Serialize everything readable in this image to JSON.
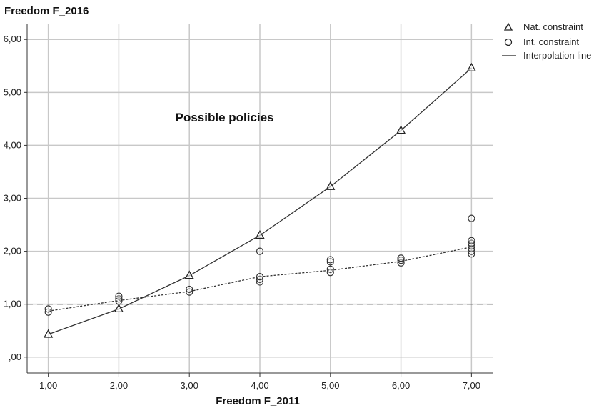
{
  "chart_data": {
    "type": "scatter",
    "ylabel": "Freedom F_2016",
    "xlabel": "Freedom F_2011",
    "xlim": [
      0.7,
      7.3
    ],
    "ylim": [
      -0.3,
      6.3
    ],
    "x_ticks": [
      1,
      2,
      3,
      4,
      5,
      6,
      7
    ],
    "y_ticks": [
      0,
      1,
      2,
      3,
      4,
      5,
      6
    ],
    "x_tick_labels": [
      "1,00",
      "2,00",
      "3,00",
      "4,00",
      "5,00",
      "6,00",
      "7,00"
    ],
    "y_tick_labels": [
      ",00",
      "1,00",
      "2,00",
      "3,00",
      "4,00",
      "5,00",
      "6,00"
    ],
    "grid": true,
    "legend_position": "top-right",
    "reference_line": {
      "y": 1.0,
      "style": "dashed"
    },
    "annotation": {
      "text": "Possible policies",
      "x": 3.5,
      "y": 4.45
    },
    "legend": [
      {
        "label": "Nat. constraint",
        "symbol": "triangle"
      },
      {
        "label": "Int. constraint",
        "symbol": "circle"
      },
      {
        "label": "Interpolation line",
        "symbol": "line"
      }
    ],
    "series": [
      {
        "name": "Nat. constraint",
        "marker": "triangle",
        "line": "solid",
        "x": [
          1,
          2,
          3,
          4,
          5,
          6,
          7
        ],
        "y": [
          0.43,
          0.91,
          1.54,
          2.3,
          3.22,
          4.28,
          5.46
        ]
      },
      {
        "name": "Int. constraint",
        "marker": "circle",
        "line": "dotted",
        "line_x": [
          1,
          2,
          3,
          4,
          5,
          6,
          7
        ],
        "line_y": [
          0.87,
          1.07,
          1.24,
          1.52,
          1.64,
          1.81,
          2.08
        ],
        "points": [
          [
            1,
            0.85
          ],
          [
            1,
            0.91
          ],
          [
            2,
            1.06
          ],
          [
            2,
            1.1
          ],
          [
            2,
            1.15
          ],
          [
            3,
            1.23
          ],
          [
            3,
            1.28
          ],
          [
            4,
            1.42
          ],
          [
            4,
            1.47
          ],
          [
            4,
            1.52
          ],
          [
            4,
            2.0
          ],
          [
            5,
            1.6
          ],
          [
            5,
            1.66
          ],
          [
            5,
            1.8
          ],
          [
            5,
            1.84
          ],
          [
            6,
            1.78
          ],
          [
            6,
            1.83
          ],
          [
            6,
            1.87
          ],
          [
            7,
            1.95
          ],
          [
            7,
            2.0
          ],
          [
            7,
            2.05
          ],
          [
            7,
            2.1
          ],
          [
            7,
            2.15
          ],
          [
            7,
            2.2
          ],
          [
            7,
            2.62
          ]
        ]
      }
    ]
  }
}
